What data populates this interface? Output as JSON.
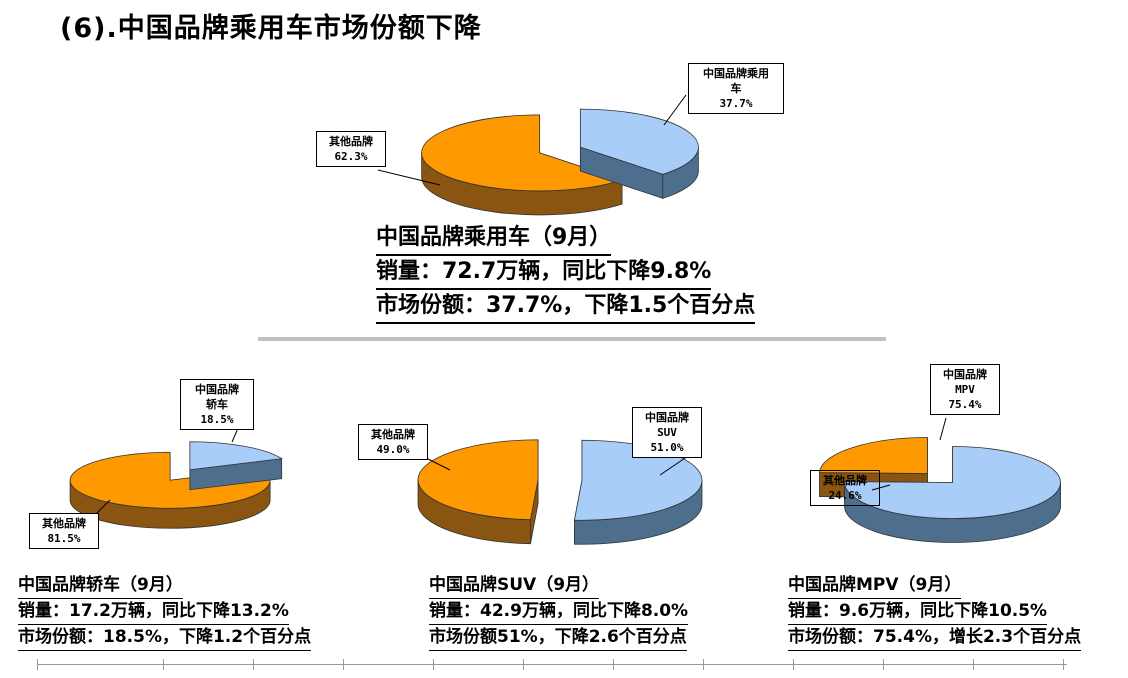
{
  "page_title": "(6).中国品牌乘用车市场份额下降",
  "colors": {
    "china_top": "#a8cdf8",
    "china_side": "#4d6e8c",
    "other_top": "#ff9900",
    "other_side": "#8a5510"
  },
  "chart_data": [
    {
      "type": "pie",
      "id": "passenger",
      "title": "中国品牌乘用车（9月）",
      "series": [
        {
          "name": "中国品牌乘用车",
          "value": 37.7,
          "label": "37.7%"
        },
        {
          "name": "其他品牌",
          "value": 62.3,
          "label": "62.3%"
        }
      ],
      "caption": [
        "中国品牌乘用车（9月）",
        "销量：72.7万辆，同比下降9.8%",
        "市场份额：37.7%，下降1.5个百分点"
      ]
    },
    {
      "type": "pie",
      "id": "sedan",
      "title": "中国品牌轿车（9月）",
      "series": [
        {
          "name": "中国品牌轿车",
          "value": 18.5,
          "label": "18.5%"
        },
        {
          "name": "其他品牌",
          "value": 81.5,
          "label": "81.5%"
        }
      ],
      "caption": [
        "中国品牌轿车（9月）",
        "销量：17.2万辆，同比下降13.2%",
        "市场份额：18.5%，下降1.2个百分点"
      ]
    },
    {
      "type": "pie",
      "id": "suv",
      "title": "中国品牌SUV（9月）",
      "series": [
        {
          "name": "中国品牌SUV",
          "value": 51.0,
          "label": "51.0%"
        },
        {
          "name": "其他品牌",
          "value": 49.0,
          "label": "49.0%"
        }
      ],
      "caption": [
        "中国品牌SUV（9月）",
        "销量：42.9万辆，同比下降8.0%",
        "市场份额51%，下降2.6个百分点"
      ]
    },
    {
      "type": "pie",
      "id": "mpv",
      "title": "中国品牌MPV（9月）",
      "series": [
        {
          "name": "中国品牌MPV",
          "value": 75.4,
          "label": "75.4%"
        },
        {
          "name": "其他品牌",
          "value": 24.6,
          "label": "24.6%"
        }
      ],
      "caption": [
        "中国品牌MPV（9月）",
        "销量：9.6万辆，同比下降10.5%",
        "市场份额：75.4%，增长2.3个百分点"
      ]
    }
  ],
  "labels": {
    "passenger_china": [
      "中国品牌乘用",
      "车",
      "37.7%"
    ],
    "passenger_other": [
      "其他品牌",
      "62.3%"
    ],
    "sedan_china": [
      "中国品牌",
      "轿车",
      "18.5%"
    ],
    "sedan_other": [
      "其他品牌",
      "81.5%"
    ],
    "suv_china": [
      "中国品牌",
      "SUV",
      "51.0%"
    ],
    "suv_other": [
      "其他品牌",
      "49.0%"
    ],
    "mpv_china": [
      "中国品牌",
      "MPV",
      "75.4%"
    ],
    "mpv_other": [
      "其他品牌",
      "24.6%"
    ]
  }
}
